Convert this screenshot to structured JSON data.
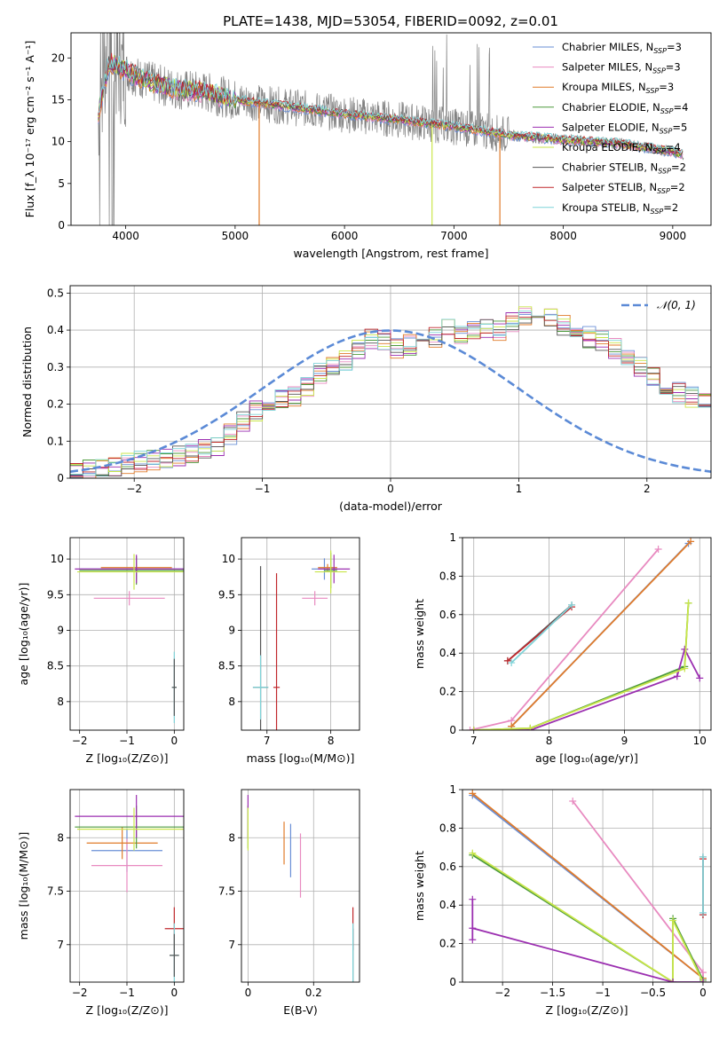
{
  "figure_title": "PLATE=1438, MJD=53054, FIBERID=0092, z=0.01",
  "colors": {
    "Chabrier MILES": "#6a8fd6",
    "Salpeter MILES": "#e88ac0",
    "Kroupa MILES": "#e07b2a",
    "Chabrier ELODIE": "#4c9a3c",
    "Salpeter ELODIE": "#9b2fb0",
    "Kroupa ELODIE": "#c9e64a",
    "Chabrier STELIB": "#555555",
    "Salpeter STELIB": "#c0282d",
    "Kroupa STELIB": "#7fd3d8",
    "data": "#808080",
    "gaussian": "#5b8ad6"
  },
  "chart_data": [
    {
      "type": "line",
      "xlabel": "wavelength [Angstrom, rest frame]",
      "ylabel": "Flux [f_λ 10⁻¹⁷ erg cm⁻² s⁻¹ A⁻¹]",
      "xlim": [
        3500,
        9350
      ],
      "ylim": [
        0,
        23
      ],
      "xticks": [
        4000,
        5000,
        6000,
        7000,
        8000,
        9000
      ],
      "yticks": [
        0,
        5,
        10,
        15,
        20
      ],
      "legend_position": "upper right",
      "legend": [
        {
          "label": "Chabrier MILES, N",
          "sub": "SSP",
          "suffix": "=3",
          "key": "Chabrier MILES"
        },
        {
          "label": "Salpeter MILES, N",
          "sub": "SSP",
          "suffix": "=3",
          "key": "Salpeter MILES"
        },
        {
          "label": "Kroupa MILES, N",
          "sub": "SSP",
          "suffix": "=3",
          "key": "Kroupa MILES"
        },
        {
          "label": "Chabrier ELODIE, N",
          "sub": "SSP",
          "suffix": "=4",
          "key": "Chabrier ELODIE"
        },
        {
          "label": "Salpeter ELODIE, N",
          "sub": "SSP",
          "suffix": "=5",
          "key": "Salpeter ELODIE"
        },
        {
          "label": "Kroupa ELODIE, N",
          "sub": "SSP",
          "suffix": "=4",
          "key": "Kroupa ELODIE"
        },
        {
          "label": "Chabrier STELIB, N",
          "sub": "SSP",
          "suffix": "=2",
          "key": "Chabrier STELIB"
        },
        {
          "label": "Salpeter STELIB, N",
          "sub": "SSP",
          "suffix": "=2",
          "key": "Salpeter STELIB"
        },
        {
          "label": "Kroupa STELIB, N",
          "sub": "SSP",
          "suffix": "=2",
          "key": "Kroupa STELIB"
        }
      ],
      "continuum_x": [
        3750,
        3850,
        3950,
        4100,
        4300,
        4500,
        4700,
        4850,
        5000,
        5300,
        5600,
        6000,
        6500,
        7000,
        7500,
        8000,
        8500,
        9000,
        9100
      ],
      "continuum_y": [
        13.5,
        19.5,
        18.8,
        17.8,
        16.8,
        16.2,
        16.0,
        15.5,
        15.0,
        14.5,
        14.0,
        13.3,
        12.6,
        11.8,
        10.8,
        10.2,
        9.8,
        8.8,
        8.4
      ],
      "model_gaps": [
        {
          "x": 5220,
          "key": "Kroupa MILES"
        },
        {
          "x": 6800,
          "key": "Kroupa ELODIE"
        },
        {
          "x": 7420,
          "key": "Kroupa MILES"
        }
      ]
    },
    {
      "type": "histogram",
      "xlabel": "(data-model)/error",
      "ylabel": "Normed distribution",
      "xlim": [
        -2.5,
        2.5
      ],
      "ylim": [
        0,
        0.52
      ],
      "xticks": [
        -2,
        -1,
        0,
        1,
        2
      ],
      "yticks": [
        0.0,
        0.1,
        0.2,
        0.3,
        0.4,
        0.5
      ],
      "legend_position": "upper right",
      "gaussian_label": "𝒩(0, 1)",
      "bin_width": 0.1,
      "envelope": [
        0.02,
        0.025,
        0.03,
        0.035,
        0.04,
        0.045,
        0.05,
        0.055,
        0.06,
        0.07,
        0.08,
        0.09,
        0.12,
        0.15,
        0.18,
        0.2,
        0.21,
        0.22,
        0.25,
        0.28,
        0.3,
        0.32,
        0.35,
        0.38,
        0.37,
        0.35,
        0.36,
        0.37,
        0.38,
        0.4,
        0.39,
        0.4,
        0.41,
        0.4,
        0.42,
        0.44,
        0.45,
        0.43,
        0.41,
        0.39,
        0.38,
        0.37,
        0.35,
        0.33,
        0.3,
        0.27,
        0.25,
        0.23,
        0.22,
        0.21,
        0.19,
        0.17,
        0.15,
        0.13,
        0.1,
        0.09,
        0.08,
        0.07,
        0.06,
        0.05,
        0.045,
        0.04,
        0.035,
        0.03,
        0.028,
        0.025,
        0.022,
        0.02,
        0.02,
        0.02
      ],
      "envelope_x0": -2.5
    },
    {
      "type": "scatter",
      "xlabel": "Z [log₁₀(Z/Z⊙)]",
      "ylabel": "age  [log₁₀(age/yr)]",
      "xlim": [
        -2.2,
        0.2
      ],
      "ylim": [
        7.6,
        10.3
      ],
      "xticks": [
        -2,
        -1,
        0
      ],
      "yticks": [
        8.0,
        8.5,
        9.0,
        9.5,
        10.0
      ],
      "points": [
        {
          "key": "Chabrier MILES",
          "x": -0.8,
          "xerr": 1.2,
          "y": 9.86,
          "yerr": 0.15
        },
        {
          "key": "Salpeter MILES",
          "x": -0.95,
          "xerr": 0.75,
          "y": 9.45,
          "yerr": 0.1
        },
        {
          "key": "Kroupa MILES",
          "x": -0.8,
          "xerr": 0.75,
          "y": 9.88,
          "yerr": 0.05
        },
        {
          "key": "Chabrier ELODIE",
          "x": -0.8,
          "xerr": 1.2,
          "y": 9.84,
          "yerr": 0.2
        },
        {
          "key": "Salpeter ELODIE",
          "x": -0.8,
          "xerr": 1.3,
          "y": 9.86,
          "yerr": 0.2
        },
        {
          "key": "Kroupa ELODIE",
          "x": -0.85,
          "xerr": 1.2,
          "y": 9.82,
          "yerr": 0.25
        },
        {
          "key": "Kroupa STELIB",
          "x": 0.0,
          "xerr": 0.05,
          "y": 8.2,
          "yerr": 0.5
        },
        {
          "key": "Chabrier STELIB",
          "x": 0.0,
          "xerr": 0.05,
          "y": 8.2,
          "yerr": 0.4
        }
      ]
    },
    {
      "type": "scatter",
      "xlabel": "mass [log₁₀(M/M⊙)]",
      "ylabel": "",
      "xlim": [
        6.6,
        8.45
      ],
      "ylim": [
        7.6,
        10.3
      ],
      "xticks": [
        7,
        8
      ],
      "yticks": [
        8.0,
        8.5,
        9.0,
        9.5,
        10.0
      ],
      "points": [
        {
          "key": "Chabrier MILES",
          "x": 7.9,
          "xerr": 0.2,
          "y": 9.86,
          "yerr": 0.15
        },
        {
          "key": "Salpeter MILES",
          "x": 7.75,
          "xerr": 0.2,
          "y": 9.45,
          "yerr": 0.1
        },
        {
          "key": "Kroupa MILES",
          "x": 7.95,
          "xerr": 0.15,
          "y": 9.88,
          "yerr": 0.05
        },
        {
          "key": "Chabrier ELODIE",
          "x": 8.0,
          "xerr": 0.1,
          "y": 9.84,
          "yerr": 0.25
        },
        {
          "key": "Salpeter ELODIE",
          "x": 8.05,
          "xerr": 0.25,
          "y": 9.86,
          "yerr": 0.2
        },
        {
          "key": "Kroupa ELODIE",
          "x": 8.0,
          "xerr": 0.25,
          "y": 9.82,
          "yerr": 0.3
        },
        {
          "key": "Chabrier STELIB",
          "x": 6.9,
          "xerr": 0.12,
          "y": 8.2,
          "yerr": 1.7
        },
        {
          "key": "Kroupa STELIB",
          "x": 6.9,
          "xerr": 0.12,
          "y": 8.2,
          "yerr": 0.45
        },
        {
          "key": "Salpeter STELIB",
          "x": 7.15,
          "xerr": 0.05,
          "y": 8.2,
          "yerr": 1.6
        }
      ]
    },
    {
      "type": "line",
      "xlabel": "age  [log₁₀(age/yr)]",
      "ylabel": "mass weight",
      "xlim": [
        6.85,
        10.15
      ],
      "ylim": [
        0,
        1
      ],
      "xticks": [
        7,
        8,
        9,
        10
      ],
      "yticks": [
        0.0,
        0.2,
        0.4,
        0.6,
        0.8,
        1.0
      ],
      "series": [
        {
          "key": "Chabrier MILES",
          "x": [
            7.5,
            9.85
          ],
          "y": [
            0.02,
            0.97
          ]
        },
        {
          "key": "Salpeter MILES",
          "x": [
            6.95,
            7.5,
            9.45
          ],
          "y": [
            0.0,
            0.05,
            0.94
          ]
        },
        {
          "key": "Kroupa MILES",
          "x": [
            7.5,
            9.88
          ],
          "y": [
            0.02,
            0.98
          ]
        },
        {
          "key": "Chabrier ELODIE",
          "x": [
            7.0,
            7.75,
            9.8,
            9.85
          ],
          "y": [
            0.0,
            0.01,
            0.33,
            0.66
          ]
        },
        {
          "key": "Salpeter ELODIE",
          "x": [
            7.0,
            7.75,
            9.7,
            9.8,
            10.0
          ],
          "y": [
            0.0,
            0.0,
            0.28,
            0.42,
            0.27
          ]
        },
        {
          "key": "Kroupa ELODIE",
          "x": [
            7.0,
            7.75,
            9.8,
            9.85
          ],
          "y": [
            0.0,
            0.01,
            0.32,
            0.66
          ]
        },
        {
          "key": "Chabrier STELIB",
          "x": [
            7.45,
            8.3
          ],
          "y": [
            0.36,
            0.65
          ]
        },
        {
          "key": "Salpeter STELIB",
          "x": [
            7.45,
            8.3
          ],
          "y": [
            0.36,
            0.64
          ]
        },
        {
          "key": "Kroupa STELIB",
          "x": [
            7.5,
            8.3
          ],
          "y": [
            0.35,
            0.65
          ]
        }
      ]
    },
    {
      "type": "scatter",
      "xlabel": "Z [log₁₀(Z/Z⊙)]",
      "ylabel": "mass [log₁₀(M/M⊙)]",
      "xlim": [
        -2.2,
        0.2
      ],
      "ylim": [
        6.65,
        8.45
      ],
      "xticks": [
        -2,
        -1,
        0
      ],
      "yticks": [
        7.0,
        7.5,
        8.0
      ],
      "points": [
        {
          "key": "Chabrier MILES",
          "x": -1.0,
          "xerr": 0.75,
          "y": 7.88,
          "yerr": 0.2
        },
        {
          "key": "Salpeter MILES",
          "x": -1.0,
          "xerr": 0.75,
          "y": 7.74,
          "yerr": 0.25
        },
        {
          "key": "Kroupa MILES",
          "x": -1.1,
          "xerr": 0.75,
          "y": 7.95,
          "yerr": 0.15
        },
        {
          "key": "Chabrier ELODIE",
          "x": -0.8,
          "xerr": 1.3,
          "y": 8.1,
          "yerr": 0.2
        },
        {
          "key": "Salpeter ELODIE",
          "x": -0.8,
          "xerr": 1.3,
          "y": 8.2,
          "yerr": 0.2
        },
        {
          "key": "Kroupa ELODIE",
          "x": -0.85,
          "xerr": 1.2,
          "y": 8.08,
          "yerr": 0.2
        },
        {
          "key": "Salpeter STELIB",
          "x": 0.0,
          "xerr": 0.2,
          "y": 7.15,
          "yerr": 0.2
        },
        {
          "key": "Kroupa STELIB",
          "x": 0.0,
          "xerr": 0.1,
          "y": 6.9,
          "yerr": 0.3
        },
        {
          "key": "Chabrier STELIB",
          "x": 0.0,
          "xerr": 0.1,
          "y": 6.9,
          "yerr": 0.2
        }
      ]
    },
    {
      "type": "scatter",
      "xlabel": "E(B-V)",
      "ylabel": "",
      "xlim": [
        -0.02,
        0.34
      ],
      "ylim": [
        6.65,
        8.45
      ],
      "xticks": [
        0.0,
        0.2
      ],
      "yticks": [
        7.0,
        7.5,
        8.0
      ],
      "points": [
        {
          "key": "Chabrier ELODIE",
          "x": 0.0,
          "xerr": 0,
          "y": 8.1,
          "yerr": 0.2
        },
        {
          "key": "Salpeter ELODIE",
          "x": 0.0,
          "xerr": 0,
          "y": 8.2,
          "yerr": 0.2
        },
        {
          "key": "Kroupa ELODIE",
          "x": 0.0,
          "xerr": 0,
          "y": 8.08,
          "yerr": 0.2
        },
        {
          "key": "Kroupa MILES",
          "x": 0.11,
          "xerr": 0,
          "y": 7.95,
          "yerr": 0.2
        },
        {
          "key": "Chabrier MILES",
          "x": 0.13,
          "xerr": 0,
          "y": 7.88,
          "yerr": 0.25
        },
        {
          "key": "Salpeter MILES",
          "x": 0.16,
          "xerr": 0,
          "y": 7.74,
          "yerr": 0.3
        },
        {
          "key": "Salpeter STELIB",
          "x": 0.32,
          "xerr": 0,
          "y": 7.15,
          "yerr": 0.2
        },
        {
          "key": "Chabrier STELIB",
          "x": 0.32,
          "xerr": 0,
          "y": 6.9,
          "yerr": 0.25
        },
        {
          "key": "Kroupa STELIB",
          "x": 0.32,
          "xerr": 0,
          "y": 6.9,
          "yerr": 0.3
        }
      ]
    },
    {
      "type": "line",
      "xlabel": "Z [log₁₀(Z/Z⊙)]",
      "ylabel": "mass weight",
      "xlim": [
        -2.4,
        0.08
      ],
      "ylim": [
        0,
        1
      ],
      "xticks": [
        -2.0,
        -1.5,
        -1.0,
        -0.5,
        0.0
      ],
      "yticks": [
        0.0,
        0.2,
        0.4,
        0.6,
        0.8,
        1.0
      ],
      "series": [
        {
          "key": "Chabrier MILES",
          "x": [
            -2.3,
            0.0
          ],
          "y": [
            0.97,
            0.02
          ]
        },
        {
          "key": "Kroupa MILES",
          "x": [
            -2.3,
            0.0
          ],
          "y": [
            0.98,
            0.02
          ]
        },
        {
          "key": "Salpeter MILES",
          "x": [
            -1.3,
            0.0,
            0.0
          ],
          "y": [
            0.94,
            0.05,
            0.0
          ]
        },
        {
          "key": "Chabrier ELODIE",
          "x": [
            -2.3,
            -0.3,
            -0.3,
            0.0
          ],
          "y": [
            0.66,
            0.0,
            0.33,
            0.01
          ]
        },
        {
          "key": "Kroupa ELODIE",
          "x": [
            -2.3,
            -0.3,
            -0.3,
            0.0
          ],
          "y": [
            0.67,
            0.0,
            0.32,
            0.0
          ]
        },
        {
          "key": "Salpeter ELODIE",
          "x": [
            -2.3,
            -2.3,
            -2.3,
            -0.3,
            0.0
          ],
          "y": [
            0.43,
            0.22,
            0.28,
            0.0,
            0.0
          ]
        },
        {
          "key": "Chabrier STELIB",
          "x": [
            0.0,
            0.0
          ],
          "y": [
            0.35,
            0.65
          ]
        },
        {
          "key": "Salpeter STELIB",
          "x": [
            0.0,
            0.0
          ],
          "y": [
            0.35,
            0.64
          ]
        },
        {
          "key": "Kroupa STELIB",
          "x": [
            0.0,
            0.0
          ],
          "y": [
            0.36,
            0.65
          ]
        }
      ]
    }
  ]
}
